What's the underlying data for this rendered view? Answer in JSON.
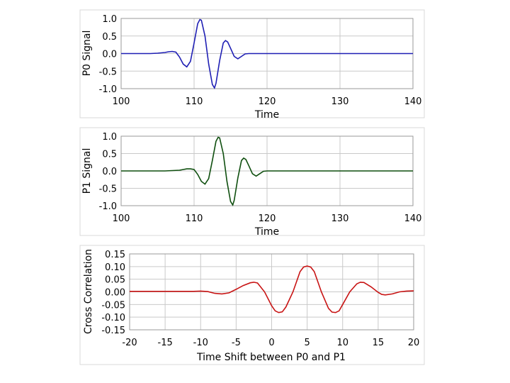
{
  "chart_data": [
    {
      "type": "line",
      "xlabel": "Time",
      "ylabel": "P0 Signal",
      "xlim": [
        100,
        140
      ],
      "ylim": [
        -1.0,
        1.0
      ],
      "xticks": [
        100,
        110,
        120,
        130,
        140
      ],
      "xtick_labels": [
        "100",
        "110",
        "120",
        "130",
        "140"
      ],
      "yticks": [
        1.0,
        0.5,
        0.0,
        -0.5,
        -1.0
      ],
      "ytick_labels": [
        "1.0",
        "0.5",
        "0.0",
        "-0.5",
        "-1.0"
      ],
      "grid": true,
      "line_color": "#1f1fb4",
      "series": [
        {
          "x": [
            100,
            104,
            105,
            106,
            106.5,
            107,
            107.5,
            108,
            108.5,
            109,
            109.5,
            110,
            110.5,
            110.8,
            111,
            111.5,
            112,
            112.5,
            112.8,
            113,
            113.5,
            114,
            114.3,
            114.6,
            115,
            115.5,
            116,
            116.5,
            117,
            117.5,
            118,
            119,
            120,
            125,
            130,
            135,
            140
          ],
          "y": [
            0.0,
            0.0,
            0.01,
            0.03,
            0.05,
            0.06,
            0.04,
            -0.1,
            -0.3,
            -0.38,
            -0.22,
            0.3,
            0.85,
            0.97,
            0.95,
            0.5,
            -0.3,
            -0.88,
            -0.98,
            -0.85,
            -0.2,
            0.3,
            0.37,
            0.33,
            0.15,
            -0.08,
            -0.15,
            -0.08,
            -0.01,
            0.0,
            0.0,
            0.0,
            0.0,
            0.0,
            0.0,
            0.0,
            0.0
          ]
        }
      ]
    },
    {
      "type": "line",
      "xlabel": "Time",
      "ylabel": "P1 Signal",
      "xlim": [
        100,
        140
      ],
      "ylim": [
        -1.0,
        1.0
      ],
      "xticks": [
        100,
        110,
        120,
        130,
        140
      ],
      "xtick_labels": [
        "100",
        "110",
        "120",
        "130",
        "140"
      ],
      "yticks": [
        1.0,
        0.5,
        0.0,
        -0.5,
        -1.0
      ],
      "ytick_labels": [
        "1.0",
        "0.5",
        "0.0",
        "-0.5",
        "-1.0"
      ],
      "grid": true,
      "line_color": "#0f4f0f",
      "series": [
        {
          "x": [
            100,
            106,
            107,
            108,
            108.5,
            109,
            109.5,
            110,
            110.5,
            111,
            111.5,
            112,
            112.5,
            113,
            113.3,
            113.5,
            114,
            114.5,
            115,
            115.3,
            115.5,
            116,
            116.5,
            116.8,
            117.1,
            117.5,
            118,
            118.5,
            119,
            119.5,
            120,
            121,
            125,
            130,
            135,
            140
          ],
          "y": [
            0.0,
            0.0,
            0.01,
            0.02,
            0.04,
            0.06,
            0.06,
            0.04,
            -0.1,
            -0.3,
            -0.38,
            -0.22,
            0.3,
            0.85,
            0.97,
            0.95,
            0.5,
            -0.3,
            -0.88,
            -0.98,
            -0.85,
            -0.2,
            0.3,
            0.37,
            0.33,
            0.15,
            -0.08,
            -0.15,
            -0.08,
            -0.01,
            0.0,
            0.0,
            0.0,
            0.0,
            0.0,
            0.0
          ]
        }
      ]
    },
    {
      "type": "line",
      "xlabel": "Time Shift between P0 and P1",
      "ylabel": "Cross Correlation",
      "xlim": [
        -20,
        20
      ],
      "ylim": [
        -0.15,
        0.15
      ],
      "xticks": [
        -20,
        -15,
        -10,
        -5,
        0,
        5,
        10,
        15,
        20
      ],
      "xtick_labels": [
        "-20",
        "-15",
        "-10",
        "-5",
        "0",
        "5",
        "10",
        "15",
        "20"
      ],
      "yticks": [
        0.15,
        0.1,
        0.05,
        0.0,
        -0.05,
        -0.1,
        -0.15
      ],
      "ytick_labels": [
        "0.15",
        "0.10",
        "0.05",
        "0.00",
        "-0.05",
        "-0.10",
        "-0.15"
      ],
      "grid": true,
      "line_color": "#c81414",
      "series": [
        {
          "x": [
            -20,
            -15,
            -11,
            -10,
            -9,
            -8,
            -7,
            -6,
            -5,
            -4,
            -3,
            -2.5,
            -2,
            -1,
            0,
            0.5,
            1,
            1.5,
            2,
            3,
            4,
            4.5,
            5,
            5.5,
            6,
            7,
            8,
            8.5,
            9,
            9.5,
            10,
            11,
            12,
            12.5,
            13,
            14,
            15,
            15.5,
            16,
            17,
            18,
            19,
            20
          ],
          "y": [
            0.002,
            0.002,
            0.002,
            0.003,
            0.001,
            -0.006,
            -0.008,
            -0.004,
            0.01,
            0.025,
            0.036,
            0.038,
            0.035,
            0.0,
            -0.055,
            -0.075,
            -0.082,
            -0.079,
            -0.06,
            0.0,
            0.08,
            0.098,
            0.102,
            0.098,
            0.08,
            0.0,
            -0.065,
            -0.08,
            -0.082,
            -0.075,
            -0.05,
            0.0,
            0.032,
            0.038,
            0.037,
            0.02,
            -0.002,
            -0.01,
            -0.012,
            -0.008,
            0.0,
            0.003,
            0.004
          ]
        }
      ]
    }
  ]
}
